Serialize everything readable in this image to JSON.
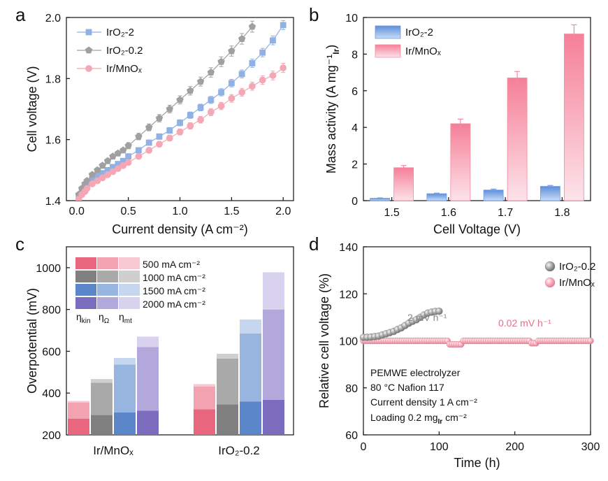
{
  "colors": {
    "iro2_2": "#8fb1e3",
    "iro2_02": "#a0a0a0",
    "ir_mnox": "#f4a8b5",
    "bar_iro2_2": "#6f9be0",
    "bar_ir_mnox": "#f58aa0",
    "kin": [
      "#e8677f",
      "#808080",
      "#5b86c9",
      "#7b6cbd"
    ],
    "ohm": [
      "#f2a2b0",
      "#a9a9a9",
      "#98b5e0",
      "#b2a8db"
    ],
    "mt": [
      "#f8c9d2",
      "#cfcfcf",
      "#c6d6ee",
      "#d8d2ee"
    ]
  },
  "chart_data": [
    {
      "panel": "a",
      "type": "line",
      "xlabel": "Current density (A cm⁻²)",
      "ylabel": "Cell voltage (V)",
      "xlim": [
        -0.1,
        2.1
      ],
      "ylim": [
        1.4,
        2.0
      ],
      "xticks": [
        "0.0",
        "0.5",
        "1.0",
        "1.5",
        "2.0"
      ],
      "yticks": [
        "1.4",
        "1.6",
        "1.8",
        "2.0"
      ],
      "series": [
        {
          "name": "IrO₂-2",
          "color_key": "iro2_2",
          "marker": "square",
          "err": 0.015,
          "x": [
            0.02,
            0.05,
            0.08,
            0.1,
            0.15,
            0.2,
            0.25,
            0.3,
            0.35,
            0.4,
            0.45,
            0.5,
            0.6,
            0.7,
            0.8,
            0.9,
            1.0,
            1.1,
            1.2,
            1.3,
            1.4,
            1.5,
            1.6,
            1.7,
            1.8,
            1.9,
            2.0
          ],
          "y": [
            1.41,
            1.43,
            1.445,
            1.455,
            1.47,
            1.48,
            1.49,
            1.5,
            1.51,
            1.52,
            1.53,
            1.545,
            1.565,
            1.59,
            1.61,
            1.63,
            1.655,
            1.68,
            1.705,
            1.73,
            1.755,
            1.785,
            1.815,
            1.85,
            1.885,
            1.925,
            1.975
          ]
        },
        {
          "name": "IrO₂-0.2",
          "color_key": "iro2_02",
          "marker": "pentagon",
          "err": 0.02,
          "x": [
            0.02,
            0.05,
            0.08,
            0.1,
            0.15,
            0.2,
            0.25,
            0.3,
            0.35,
            0.4,
            0.45,
            0.5,
            0.6,
            0.7,
            0.8,
            0.9,
            1.0,
            1.1,
            1.2,
            1.3,
            1.4,
            1.5,
            1.6,
            1.7
          ],
          "y": [
            1.42,
            1.44,
            1.455,
            1.465,
            1.485,
            1.5,
            1.515,
            1.53,
            1.545,
            1.555,
            1.565,
            1.58,
            1.61,
            1.64,
            1.67,
            1.7,
            1.73,
            1.76,
            1.79,
            1.82,
            1.855,
            1.89,
            1.93,
            1.97
          ]
        },
        {
          "name": "Ir/MnOₓ",
          "color_key": "ir_mnox",
          "marker": "circle",
          "err": 0.015,
          "x": [
            0.02,
            0.05,
            0.08,
            0.1,
            0.15,
            0.2,
            0.25,
            0.3,
            0.35,
            0.4,
            0.45,
            0.5,
            0.6,
            0.7,
            0.8,
            0.9,
            1.0,
            1.1,
            1.2,
            1.3,
            1.4,
            1.5,
            1.6,
            1.7,
            1.8,
            1.9,
            2.0
          ],
          "y": [
            1.405,
            1.42,
            1.43,
            1.44,
            1.455,
            1.465,
            1.475,
            1.485,
            1.495,
            1.505,
            1.515,
            1.525,
            1.545,
            1.565,
            1.585,
            1.605,
            1.625,
            1.645,
            1.665,
            1.69,
            1.71,
            1.735,
            1.755,
            1.775,
            1.795,
            1.81,
            1.835
          ]
        }
      ]
    },
    {
      "panel": "b",
      "type": "bar",
      "xlabel": "Cell Voltage (V)",
      "ylabel": "Mass activity (A mg⁻¹)",
      "ylabel_sub": "Ir",
      "ylim": [
        0,
        10
      ],
      "yticks": [
        "0",
        "2",
        "4",
        "6",
        "8",
        "10"
      ],
      "categories": [
        "1.5",
        "1.6",
        "1.7",
        "1.8"
      ],
      "series": [
        {
          "name": "IrO₂-2",
          "color_key": "bar_iro2_2",
          "values": [
            0.13,
            0.38,
            0.58,
            0.78
          ],
          "err": [
            0.02,
            0.03,
            0.05,
            0.05
          ]
        },
        {
          "name": "Ir/MnOₓ",
          "color_key": "bar_ir_mnox",
          "values": [
            1.8,
            4.2,
            6.7,
            9.1
          ],
          "err": [
            0.12,
            0.25,
            0.35,
            0.5
          ]
        }
      ]
    },
    {
      "panel": "c",
      "type": "bar",
      "ylabel": "Overpotential (mV)",
      "ylim": [
        200,
        1100
      ],
      "yticks": [
        "200",
        "400",
        "600",
        "800",
        "1000"
      ],
      "categories": [
        "Ir/MnOₓ",
        "IrO₂-0.2"
      ],
      "current_densities": [
        "500 mA cm⁻²",
        "1000 mA cm⁻²",
        "1500 mA cm⁻²",
        "2000 mA cm⁻²"
      ],
      "components": [
        "η_kin",
        "η_Ω",
        "η_mt"
      ],
      "stacks": {
        "Ir/MnOₓ": [
          [
            278,
            355,
            362
          ],
          [
            295,
            450,
            467
          ],
          [
            308,
            537,
            568
          ],
          [
            316,
            620,
            670
          ]
        ],
        "IrO₂-0.2": [
          [
            322,
            432,
            443
          ],
          [
            346,
            565,
            588
          ],
          [
            360,
            685,
            752
          ],
          [
            368,
            800,
            978
          ]
        ]
      }
    },
    {
      "panel": "d",
      "type": "scatter",
      "xlabel": "Time (h)",
      "ylabel": "Relative cell voltage (%)",
      "xlim": [
        0,
        300
      ],
      "ylim": [
        60,
        140
      ],
      "xticks": [
        "0",
        "100",
        "200",
        "300"
      ],
      "yticks": [
        "60",
        "80",
        "100",
        "120",
        "140"
      ],
      "series": [
        {
          "name": "IrO₂-0.2",
          "color_key": "iro2_02",
          "rate": "2 mV h⁻¹",
          "x": [
            0,
            5,
            10,
            15,
            20,
            25,
            30,
            35,
            40,
            45,
            50,
            55,
            60,
            65,
            70,
            75,
            80,
            85,
            90,
            95,
            100
          ],
          "y": [
            101.5,
            101.5,
            101.6,
            101.8,
            102.0,
            102.5,
            103.0,
            103.5,
            104.0,
            104.8,
            105.5,
            106.5,
            107.5,
            108.3,
            109.0,
            110.0,
            111.0,
            111.8,
            112.2,
            112.5,
            112.6
          ]
        },
        {
          "name": "Ir/MnOₓ",
          "color_key": "ir_mnox",
          "rate": "0.02 mV h⁻¹",
          "x_start": 0,
          "x_end": 300,
          "x_step": 3,
          "baseline": 100,
          "dips": [
            {
              "from": 112,
              "to": 130,
              "value": 98.5
            },
            {
              "from": 220,
              "to": 228,
              "value": 99.0
            }
          ]
        }
      ],
      "annotation_lines": [
        "PEMWE electrolyzer",
        "80 °C Nafion 117",
        "Current density 1 A cm⁻²",
        "Loading 0.2 mg"
      ],
      "annotation_sub": "Ir",
      "annotation_tail": " cm⁻²"
    }
  ],
  "panels": {
    "a": {
      "label": "a",
      "legend": [
        "IrO₂-2",
        "IrO₂-0.2",
        "Ir/MnOₓ"
      ]
    },
    "b": {
      "label": "b",
      "legend": [
        "IrO₂-2",
        "Ir/MnOₓ"
      ]
    },
    "c": {
      "label": "c",
      "eta_kin": "η",
      "eta_kin_sub": "kin",
      "eta_ohm": "η",
      "eta_ohm_sub": "Ω",
      "eta_mt": "η",
      "eta_mt_sub": "mt"
    },
    "d": {
      "label": "d",
      "legend": [
        "IrO₂-0.2",
        "Ir/MnOₓ"
      ]
    }
  }
}
